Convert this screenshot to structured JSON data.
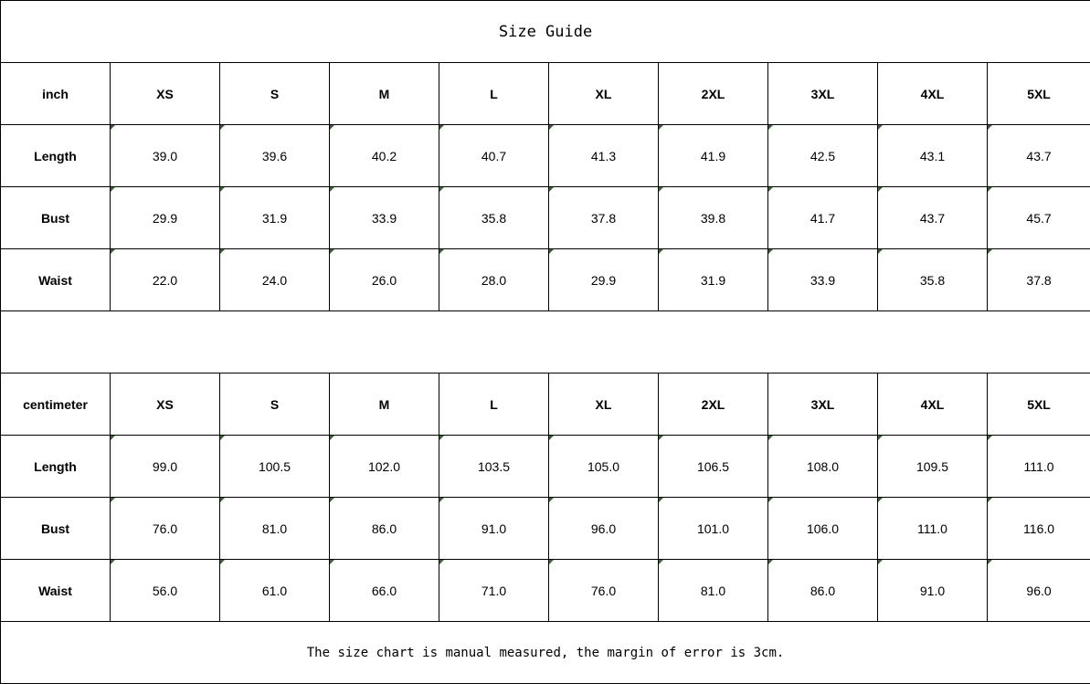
{
  "title": "Size Guide",
  "tables": [
    {
      "unit": "inch",
      "sizes": [
        "XS",
        "S",
        "M",
        "L",
        "XL",
        "2XL",
        "3XL",
        "4XL",
        "5XL"
      ],
      "rows": [
        {
          "label": "Length",
          "values": [
            "39.0",
            "39.6",
            "40.2",
            "40.7",
            "41.3",
            "41.9",
            "42.5",
            "43.1",
            "43.7"
          ]
        },
        {
          "label": "Bust",
          "values": [
            "29.9",
            "31.9",
            "33.9",
            "35.8",
            "37.8",
            "39.8",
            "41.7",
            "43.7",
            "45.7"
          ]
        },
        {
          "label": "Waist",
          "values": [
            "22.0",
            "24.0",
            "26.0",
            "28.0",
            "29.9",
            "31.9",
            "33.9",
            "35.8",
            "37.8"
          ]
        }
      ]
    },
    {
      "unit": "centimeter",
      "sizes": [
        "XS",
        "S",
        "M",
        "L",
        "XL",
        "2XL",
        "3XL",
        "4XL",
        "5XL"
      ],
      "rows": [
        {
          "label": "Length",
          "values": [
            "99.0",
            "100.5",
            "102.0",
            "103.5",
            "105.0",
            "106.5",
            "108.0",
            "109.5",
            "111.0"
          ]
        },
        {
          "label": "Bust",
          "values": [
            "76.0",
            "81.0",
            "86.0",
            "91.0",
            "96.0",
            "101.0",
            "106.0",
            "111.0",
            "116.0"
          ]
        },
        {
          "label": "Waist",
          "values": [
            "56.0",
            "61.0",
            "66.0",
            "71.0",
            "76.0",
            "81.0",
            "86.0",
            "91.0",
            "96.0"
          ]
        }
      ]
    }
  ],
  "note": "The size chart is manual measured, the margin of error is 3cm.",
  "colors": {
    "corner_marker": "#1a7a1a",
    "border": "#000000"
  }
}
